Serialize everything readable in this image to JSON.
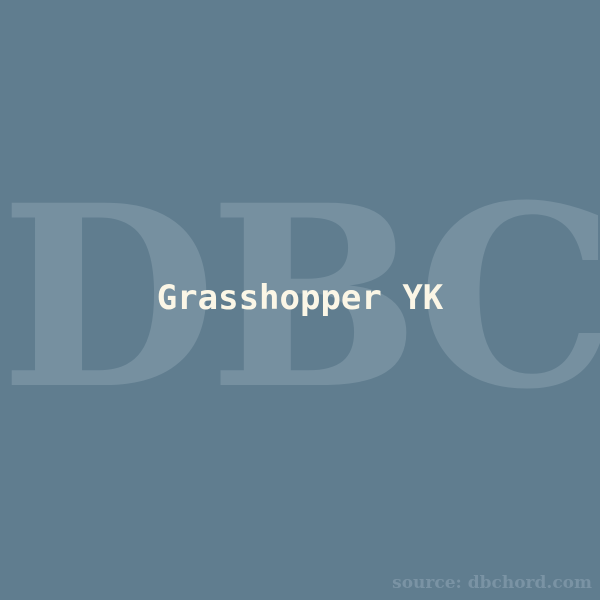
{
  "background_color": "#607d8f",
  "watermark": {
    "text": "DBC",
    "color": "#7690a0"
  },
  "title": {
    "text": "Grasshopper YK",
    "color": "#fbf6e6"
  },
  "source": {
    "text": "source: dbchord.com",
    "color": "#7a93a4"
  }
}
